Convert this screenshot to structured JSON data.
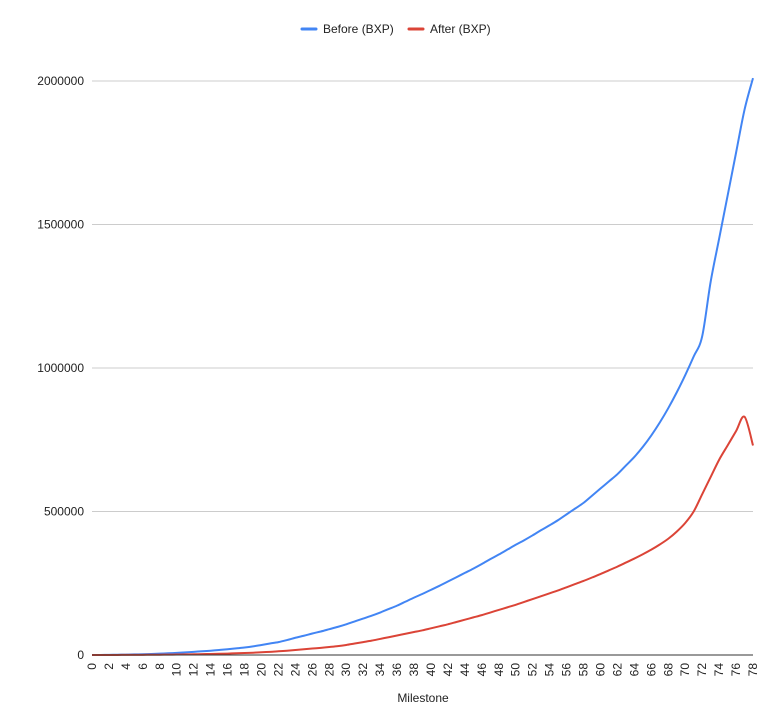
{
  "chart_data": {
    "type": "line",
    "xlabel": "Milestone",
    "ylabel": "",
    "ylim": [
      0,
      2000000
    ],
    "yticks": [
      0,
      500000,
      1000000,
      1500000,
      2000000
    ],
    "ytick_labels": [
      "0",
      "500000",
      "1000000",
      "1500000",
      "2000000"
    ],
    "xlim": [
      0,
      78
    ],
    "x": [
      0,
      1,
      2,
      3,
      4,
      5,
      6,
      7,
      8,
      9,
      10,
      11,
      12,
      13,
      14,
      15,
      16,
      17,
      18,
      19,
      20,
      21,
      22,
      23,
      24,
      25,
      26,
      27,
      28,
      29,
      30,
      31,
      32,
      33,
      34,
      35,
      36,
      37,
      38,
      39,
      40,
      41,
      42,
      43,
      44,
      45,
      46,
      47,
      48,
      49,
      50,
      51,
      52,
      53,
      54,
      55,
      56,
      57,
      58,
      59,
      60,
      61,
      62,
      63,
      64,
      65,
      66,
      67,
      68,
      69,
      70,
      71,
      72,
      73,
      74,
      75,
      76,
      77,
      78
    ],
    "xtick_labels": [
      "0",
      "2",
      "4",
      "6",
      "8",
      "10",
      "12",
      "14",
      "16",
      "18",
      "20",
      "22",
      "24",
      "26",
      "28",
      "30",
      "32",
      "34",
      "36",
      "38",
      "40",
      "42",
      "44",
      "46",
      "48",
      "50",
      "52",
      "54",
      "56",
      "58",
      "60",
      "62",
      "64",
      "66",
      "68",
      "70",
      "72",
      "74",
      "76",
      "78"
    ],
    "grid": true,
    "legend_position": "top",
    "series": [
      {
        "name": "Before (BXP)",
        "color": "#4285f4",
        "values": [
          0,
          200,
          500,
          900,
          1400,
          2000,
          2800,
          3700,
          4800,
          6000,
          7500,
          9000,
          11000,
          13000,
          15000,
          17500,
          20000,
          23000,
          26000,
          30000,
          35000,
          40000,
          45000,
          52000,
          60000,
          67000,
          75000,
          82000,
          90000,
          98000,
          107000,
          117000,
          127000,
          137000,
          148000,
          160000,
          172000,
          186000,
          200000,
          213000,
          227000,
          241000,
          256000,
          271000,
          286000,
          301000,
          317000,
          334000,
          350000,
          367000,
          384000,
          400000,
          417000,
          435000,
          452000,
          470000,
          490000,
          510000,
          530000,
          555000,
          580000,
          605000,
          630000,
          660000,
          690000,
          725000,
          765000,
          810000,
          860000,
          915000,
          975000,
          1040000,
          1110000,
          1300000,
          1450000,
          1600000,
          1750000,
          1900000,
          2010000
        ]
      },
      {
        "name": "After (BXP)",
        "color": "#db4437",
        "values": [
          0,
          50,
          100,
          200,
          300,
          400,
          600,
          800,
          1000,
          1300,
          1600,
          2000,
          2500,
          3000,
          3600,
          4200,
          5000,
          6000,
          7000,
          8000,
          9500,
          11000,
          13000,
          15000,
          17500,
          20000,
          22500,
          25000,
          28000,
          31000,
          35000,
          40000,
          45000,
          50000,
          56000,
          62000,
          68000,
          74000,
          80000,
          86000,
          93000,
          100000,
          107000,
          115000,
          123000,
          131000,
          139000,
          148000,
          157000,
          166000,
          175000,
          185000,
          195000,
          205000,
          215000,
          225000,
          236000,
          247000,
          258000,
          270000,
          282000,
          295000,
          308000,
          322000,
          336000,
          351000,
          367000,
          385000,
          405000,
          430000,
          460000,
          500000,
          560000,
          620000,
          680000,
          730000,
          780000,
          830000,
          730000
        ]
      }
    ]
  }
}
